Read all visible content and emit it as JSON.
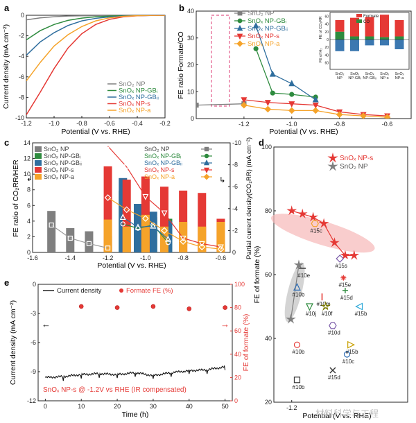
{
  "colors": {
    "np": "#7f7f7f",
    "gb1": "#2e8b3e",
    "gb2": "#2f6e9e",
    "s": "#e53935",
    "a": "#f5a32a",
    "axis": "#222222",
    "red_axis": "#e53935"
  },
  "watermark": "材料科学与工程",
  "panel_letters": [
    "a",
    "b",
    "c",
    "d",
    "e"
  ],
  "chart_data": [
    {
      "panel": "a",
      "type": "line",
      "xlabel": "Potential (V vs. RHE)",
      "ylabel": "Current density (mA cm⁻²)",
      "xlim": [
        -1.2,
        -0.2
      ],
      "ylim": [
        -10,
        0
      ],
      "xticks": [
        -1.2,
        -1.0,
        -0.8,
        -0.6,
        -0.4,
        -0.2
      ],
      "yticks": [
        0,
        -2,
        -4,
        -6,
        -8,
        -10
      ],
      "tick_labels_x": [
        "-1.2",
        "-1.0",
        "-0.8",
        "-0.6",
        "-0.4",
        "-0.2"
      ],
      "tick_labels_y": [
        "0",
        "-2",
        "-4",
        "-6",
        "-8",
        "-10"
      ],
      "legend": [
        "SnO₂ NP",
        "SnOₓ NP-GBᵢ",
        "SnOₓ NP-GBᵢᵢ",
        "SnOₓ NP-s",
        "SnOₓ NP-a"
      ],
      "series": [
        {
          "name": "SnO₂ NP",
          "key": "np",
          "x": [
            -1.2,
            -1.1,
            -1.0,
            -0.9,
            -0.8,
            -0.7,
            -0.6,
            -0.5,
            -0.4,
            -0.3,
            -0.2
          ],
          "y": [
            -0.45,
            -0.25,
            -0.14,
            -0.08,
            -0.05,
            -0.03,
            -0.02,
            -0.01,
            0,
            0,
            0
          ]
        },
        {
          "name": "SnOₓ NP-GBᵢ",
          "key": "gb1",
          "x": [
            -1.2,
            -1.1,
            -1.0,
            -0.9,
            -0.8,
            -0.7,
            -0.6,
            -0.5,
            -0.4,
            -0.3,
            -0.2
          ],
          "y": [
            -2.4,
            -1.5,
            -0.9,
            -0.5,
            -0.28,
            -0.15,
            -0.08,
            -0.04,
            -0.02,
            -0.01,
            0
          ]
        },
        {
          "name": "SnOₓ NP-GBᵢᵢ",
          "key": "gb2",
          "x": [
            -1.2,
            -1.1,
            -1.0,
            -0.9,
            -0.8,
            -0.7,
            -0.6,
            -0.5,
            -0.4,
            -0.3,
            -0.2
          ],
          "y": [
            -3.9,
            -2.6,
            -1.7,
            -1.0,
            -0.55,
            -0.3,
            -0.16,
            -0.08,
            -0.04,
            -0.02,
            0
          ]
        },
        {
          "name": "SnOₓ NP-s",
          "key": "s",
          "x": [
            -1.2,
            -1.1,
            -1.0,
            -0.9,
            -0.8,
            -0.7,
            -0.6,
            -0.5,
            -0.4,
            -0.3,
            -0.2
          ],
          "y": [
            -9.7,
            -7.5,
            -5.2,
            -3.2,
            -1.8,
            -0.9,
            -0.4,
            -0.15,
            -0.05,
            -0.02,
            0
          ]
        },
        {
          "name": "SnOₓ NP-a",
          "key": "a",
          "x": [
            -1.2,
            -1.1,
            -1.0,
            -0.9,
            -0.8,
            -0.7,
            -0.6,
            -0.5,
            -0.4,
            -0.3,
            -0.2
          ],
          "y": [
            -6.4,
            -4.6,
            -3.0,
            -1.9,
            -1.1,
            -0.55,
            -0.25,
            -0.1,
            -0.04,
            -0.01,
            0
          ]
        }
      ]
    },
    {
      "panel": "b",
      "type": "line",
      "xlabel": "Potential (V vs. RHE)",
      "ylabel": "FE ratio Formate/CO",
      "xlim": [
        -1.4,
        -0.5
      ],
      "ylim": [
        0,
        40
      ],
      "xticks": [
        -1.2,
        -1.0,
        -0.8,
        -0.6
      ],
      "yticks": [
        0,
        10,
        20,
        30,
        40
      ],
      "tick_labels_x": [
        "-1.2",
        "-1.0",
        "-0.8",
        "-0.6"
      ],
      "tick_labels_y": [
        "0",
        "10",
        "20",
        "30",
        "40"
      ],
      "legend": [
        "SnO₂ NP",
        "SnOₓ NP-GBᵢ",
        "SnOₓ NP-GBᵢᵢ",
        "SnOₓ NP-s",
        "SnOₓ NP-a"
      ],
      "series": [
        {
          "name": "SnO₂ NP",
          "key": "np",
          "x": [
            -1.4,
            -1.2
          ],
          "y": [
            5,
            5.5
          ]
        },
        {
          "name": "SnOₓ NP-GBᵢ",
          "key": "gb1",
          "x": [
            -1.15,
            -1.08,
            -1.0,
            -0.9
          ],
          "y": [
            26,
            9.5,
            9,
            8
          ]
        },
        {
          "name": "SnOₓ NP-GBᵢᵢ",
          "key": "gb2",
          "x": [
            -1.15,
            -1.08,
            -1.0,
            -0.9
          ],
          "y": [
            34.5,
            16.5,
            13,
            7
          ]
        },
        {
          "name": "SnOₓ NP-s",
          "key": "s",
          "x": [
            -1.2,
            -1.1,
            -1.0,
            -0.9,
            -0.8,
            -0.7,
            -0.6
          ],
          "y": [
            7,
            6,
            5.5,
            5,
            2.5,
            1.5,
            1
          ]
        },
        {
          "name": "SnOₓ NP-a",
          "key": "a",
          "x": [
            -1.2,
            -1.1,
            -1.0,
            -0.9,
            -0.8,
            -0.7,
            -0.6
          ],
          "y": [
            5,
            3.5,
            3,
            3,
            1.5,
            1,
            0.5
          ]
        }
      ],
      "inset": {
        "type": "bar",
        "title_left": "FE of CO₂RR",
        "title_bottom": "FE of H₂",
        "legend": [
          "Formate",
          "CO"
        ],
        "tick_labels_y": [
          "60",
          "40",
          "20",
          "0",
          "20",
          "40",
          "60"
        ],
        "categories": [
          "SnO₂ NP",
          "SnOₓ NP-GBᵢ",
          "SnOₓ NP-GBᵢᵢ",
          "SnOₓ NP-s",
          "SnOₓ NP-a"
        ],
        "category_lines": [
          [
            "SnO₂",
            "NP"
          ],
          [
            "SnOₓ",
            "NP-GBᵢ"
          ],
          [
            "SnOₓ",
            "NP-GBᵢᵢ"
          ],
          [
            "SnOₓ",
            "NP-s"
          ],
          [
            "SnOₓ",
            "NP-a"
          ]
        ],
        "formate": [
          30,
          48,
          50,
          58,
          42
        ],
        "co": [
          20,
          8,
          8,
          6,
          8
        ],
        "h2": [
          30,
          30,
          15,
          15,
          25
        ]
      }
    },
    {
      "panel": "c",
      "type": "bar",
      "xlabel": "Potential (V vs. RHE)",
      "ylabel": "FE ratio of CO₂RR/HER",
      "ylabel_right": "Partial current density(CO₂RR) (mA cm⁻²)",
      "xlim": [
        -1.6,
        -0.55
      ],
      "ylim": [
        0,
        14
      ],
      "ylim_right": [
        0,
        -10
      ],
      "xticks": [
        -1.6,
        -1.4,
        -1.2,
        -1.0,
        -0.8,
        -0.6
      ],
      "yticks": [
        0,
        2,
        4,
        6,
        8,
        10,
        12,
        14
      ],
      "yticks_right": [
        0,
        -2,
        -4,
        -6,
        -8,
        -10
      ],
      "tick_labels_x": [
        "-1.6",
        "-1.4",
        "-1.2",
        "-1.0",
        "-0.8",
        "-0.6"
      ],
      "tick_labels_y": [
        "0",
        "2",
        "4",
        "6",
        "8",
        "10",
        "12",
        "14"
      ],
      "tick_labels_y_right": [
        "0",
        "-2",
        "-4",
        "-6",
        "-8",
        "-10"
      ],
      "legend": [
        "SnO₂ NP",
        "SnOₓ NP-GBᵢ",
        "SnOₓ NP-GBᵢᵢ",
        "SnOₓ NP-s",
        "SnOₓ NP-a"
      ],
      "bars": [
        {
          "key": "np",
          "x": [
            -1.5,
            -1.4,
            -1.3,
            -1.2
          ],
          "y": [
            5.3,
            3.1,
            2.7,
            2.1
          ]
        },
        {
          "key": "gb1",
          "x": [
            -1.12,
            -1.04,
            -0.96,
            -0.88
          ],
          "y": [
            7.9,
            4.2,
            4.5,
            4.3
          ]
        },
        {
          "key": "gb2",
          "x": [
            -1.12,
            -1.04,
            -0.96,
            -0.88
          ],
          "y": [
            9.5,
            6.2,
            5.2,
            4.0
          ]
        },
        {
          "key": "s",
          "x": [
            -1.2,
            -1.1,
            -1.0,
            -0.9,
            -0.8,
            -0.7,
            -0.6
          ],
          "y": [
            11.0,
            9.3,
            9.7,
            8.4,
            7.9,
            7.6,
            4.3
          ]
        },
        {
          "key": "a",
          "x": [
            -1.2,
            -1.1,
            -1.0,
            -0.9,
            -0.8,
            -0.7,
            -0.6
          ],
          "y": [
            4.2,
            3.3,
            4.8,
            3.3,
            3.9,
            3.3,
            3.9
          ]
        }
      ],
      "lines": [
        {
          "key": "np",
          "x": [
            -1.5,
            -1.4,
            -1.3,
            -1.2
          ],
          "y": [
            -2.5,
            -1.3,
            -0.8,
            -0.4
          ]
        },
        {
          "key": "gb1",
          "x": [
            -1.12,
            -1.04,
            -0.96,
            -0.88
          ],
          "y": [
            -2.6,
            -2.2,
            -2.5,
            -0.9
          ]
        },
        {
          "key": "gb2",
          "x": [
            -1.12,
            -1.04,
            -0.96,
            -0.88
          ],
          "y": [
            -3.2,
            -2.3,
            -2.4,
            -1.2
          ]
        },
        {
          "key": "s",
          "x": [
            -1.2,
            -1.1,
            -1.0,
            -0.9,
            -0.8,
            -0.7,
            -0.6
          ],
          "y": [
            -9.7,
            -7.8,
            -5.1,
            -3.6,
            -1.3,
            -0.8,
            -0.5
          ]
        },
        {
          "key": "a",
          "x": [
            -1.2,
            -1.1,
            -1.0,
            -0.9,
            -0.8,
            -0.7,
            -0.6
          ],
          "y": [
            -5.0,
            -3.9,
            -3.1,
            -2.0,
            -1.0,
            -0.5,
            -0.3
          ]
        }
      ]
    },
    {
      "panel": "d",
      "type": "scatter",
      "xlabel": "Potential (V vs. RHE)",
      "ylabel": "FE of formate (%)",
      "xlim": [
        -1.3,
        -0.55
      ],
      "ylim": [
        20,
        100
      ],
      "xticks": [
        -1.2
      ],
      "yticks": [
        20,
        40,
        60,
        80,
        100
      ],
      "tick_labels_x": [
        "-1.2"
      ],
      "tick_labels_y": [
        "20",
        "40",
        "60",
        "80",
        "100"
      ],
      "legend": [
        "SnOₓ NP-s",
        "SnO₂ NP"
      ],
      "series": [
        {
          "name": "SnOₓ NP-s",
          "key": "s",
          "x": [
            -1.2,
            -1.14,
            -1.08,
            -1.02,
            -0.96,
            -0.9,
            -0.85
          ],
          "y": [
            80,
            79,
            78,
            76,
            70,
            66,
            66
          ]
        },
        {
          "name": "SnO₂ NP",
          "key": "np",
          "x": [
            -1.205,
            -1.16
          ],
          "y": [
            46,
            63
          ]
        }
      ],
      "points": [
        {
          "label": "#15c",
          "x": [
            -1.07
          ],
          "y": [
            76
          ],
          "marker": "hexagon",
          "color": "#f5a32a"
        },
        {
          "label": "#15s",
          "x": [
            -0.93
          ],
          "y": [
            65
          ],
          "marker": "diamond",
          "color": "#7a5aa8"
        },
        {
          "label": "#10e",
          "x": [
            -1.14
          ],
          "y": [
            62
          ],
          "marker": "dash",
          "color": "#333333"
        },
        {
          "label": "#15e",
          "x": [
            -0.91
          ],
          "y": [
            59
          ],
          "marker": "asterisk",
          "color": "#e53935"
        },
        {
          "label": "#10b",
          "x": [
            -1.17
          ],
          "y": [
            56
          ],
          "marker": "triangle-up",
          "color": "#2f6eb5"
        },
        {
          "label": "#15d",
          "x": [
            -0.9
          ],
          "y": [
            55
          ],
          "marker": "plus",
          "color": "#2e8b3e"
        },
        {
          "label": "#10m",
          "x": [
            -1.03
          ],
          "y": [
            53
          ],
          "marker": "tick",
          "color": "#e53935"
        },
        {
          "label": "#10j",
          "x": [
            -1.1
          ],
          "y": [
            50
          ],
          "marker": "triangle-down",
          "color": "#2e8b3e"
        },
        {
          "label": "#10f",
          "x": [
            -1.01
          ],
          "y": [
            50
          ],
          "marker": "star",
          "color": "#7a7a00"
        },
        {
          "label": "#15b",
          "x": [
            -0.82
          ],
          "y": [
            50
          ],
          "marker": "triangle-left",
          "color": "#29a7d8"
        },
        {
          "label": "#10d",
          "x": [
            -0.97
          ],
          "y": [
            44
          ],
          "marker": "hexagon",
          "color": "#7a5aa8"
        },
        {
          "label": "#10b",
          "x": [
            -1.17
          ],
          "y": [
            38
          ],
          "marker": "circle",
          "color": "#e53935"
        },
        {
          "label": "#15b",
          "x": [
            -0.87
          ],
          "y": [
            38
          ],
          "marker": "triangle-right",
          "color": "#c8a000"
        },
        {
          "label": "#10c",
          "x": [
            -0.89
          ],
          "y": [
            35
          ],
          "marker": "circle",
          "color": "#2f6eb5"
        },
        {
          "label": "#15d",
          "x": [
            -0.97
          ],
          "y": [
            30
          ],
          "marker": "cross",
          "color": "#333333"
        },
        {
          "label": "#10b",
          "x": [
            -1.17
          ],
          "y": [
            27
          ],
          "marker": "square",
          "color": "#333333"
        }
      ]
    },
    {
      "panel": "e",
      "type": "line",
      "xlabel": "Time (h)",
      "ylabel": "Current density (mA cm⁻²)",
      "ylabel_right": "FE of formate (%)",
      "xlim": [
        -2,
        52
      ],
      "ylim": [
        -12,
        0
      ],
      "ylim_right": [
        0,
        100
      ],
      "xticks": [
        0,
        10,
        20,
        30,
        40,
        50
      ],
      "yticks": [
        0,
        -3,
        -6,
        -9,
        -12
      ],
      "yticks_right": [
        0,
        20,
        40,
        60,
        80,
        100
      ],
      "tick_labels_x": [
        "0",
        "10",
        "20",
        "30",
        "40",
        "50"
      ],
      "tick_labels_y": [
        "0",
        "-3",
        "-6",
        "-9",
        "-12"
      ],
      "tick_labels_y_right": [
        "0",
        "20",
        "40",
        "60",
        "80",
        "100"
      ],
      "legend": [
        "Current density",
        "Formate FE (%)"
      ],
      "note": "SnOₓ NP-s @ -1.2V vs RHE (IR compensated)",
      "series": [
        {
          "name": "Current density",
          "key": "cd",
          "x": [
            0,
            5,
            10,
            15,
            20,
            25,
            30,
            35,
            40,
            45,
            50
          ],
          "y": [
            -9.6,
            -9.5,
            -9.3,
            -9.2,
            -9.3,
            -9.1,
            -9.4,
            -9.1,
            -8.9,
            -8.8,
            -8.5
          ]
        },
        {
          "name": "Formate FE (%)",
          "key": "fe",
          "x": [
            10,
            20,
            30,
            40,
            50
          ],
          "y": [
            81,
            80,
            81,
            79,
            80
          ]
        }
      ]
    }
  ]
}
